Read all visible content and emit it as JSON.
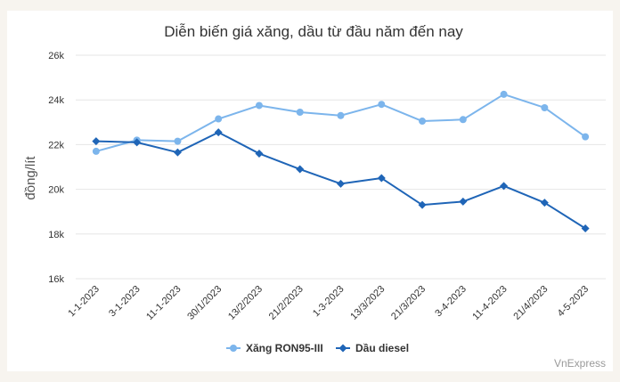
{
  "chart_data": {
    "type": "line",
    "title": "Diễn biến giá xăng, dầu từ đầu năm đến nay",
    "xlabel": "",
    "ylabel": "đồng/lít",
    "ylim": [
      16000,
      26000
    ],
    "yticks": [
      {
        "value": 16000,
        "label": "16k"
      },
      {
        "value": 18000,
        "label": "18k"
      },
      {
        "value": 20000,
        "label": "20k"
      },
      {
        "value": 22000,
        "label": "22k"
      },
      {
        "value": 24000,
        "label": "24k"
      },
      {
        "value": 26000,
        "label": "26k"
      }
    ],
    "categories": [
      "1-1-2023",
      "3-1-2023",
      "11-1-2023",
      "30/1/2023",
      "13/2/2023",
      "21/2/2023",
      "1-3-2023",
      "13/3/2023",
      "21/3/2023",
      "3-4-2023",
      "11-4-2023",
      "21/4/2023",
      "4-5-2023"
    ],
    "series": [
      {
        "name": "Xăng RON95-III",
        "color": "#7cb5ec",
        "marker": "circle",
        "values": [
          21700,
          22200,
          22150,
          23150,
          23750,
          23450,
          23300,
          23800,
          23050,
          23120,
          24250,
          23650,
          22350
        ]
      },
      {
        "name": "Dầu diesel",
        "color": "#1f65b7",
        "marker": "diamond",
        "values": [
          22150,
          22100,
          21650,
          22550,
          21600,
          20900,
          20250,
          20500,
          19300,
          19450,
          20150,
          19400,
          18250
        ]
      }
    ],
    "grid": true,
    "legend_position": "bottom-center"
  },
  "credit": "VnExpress"
}
